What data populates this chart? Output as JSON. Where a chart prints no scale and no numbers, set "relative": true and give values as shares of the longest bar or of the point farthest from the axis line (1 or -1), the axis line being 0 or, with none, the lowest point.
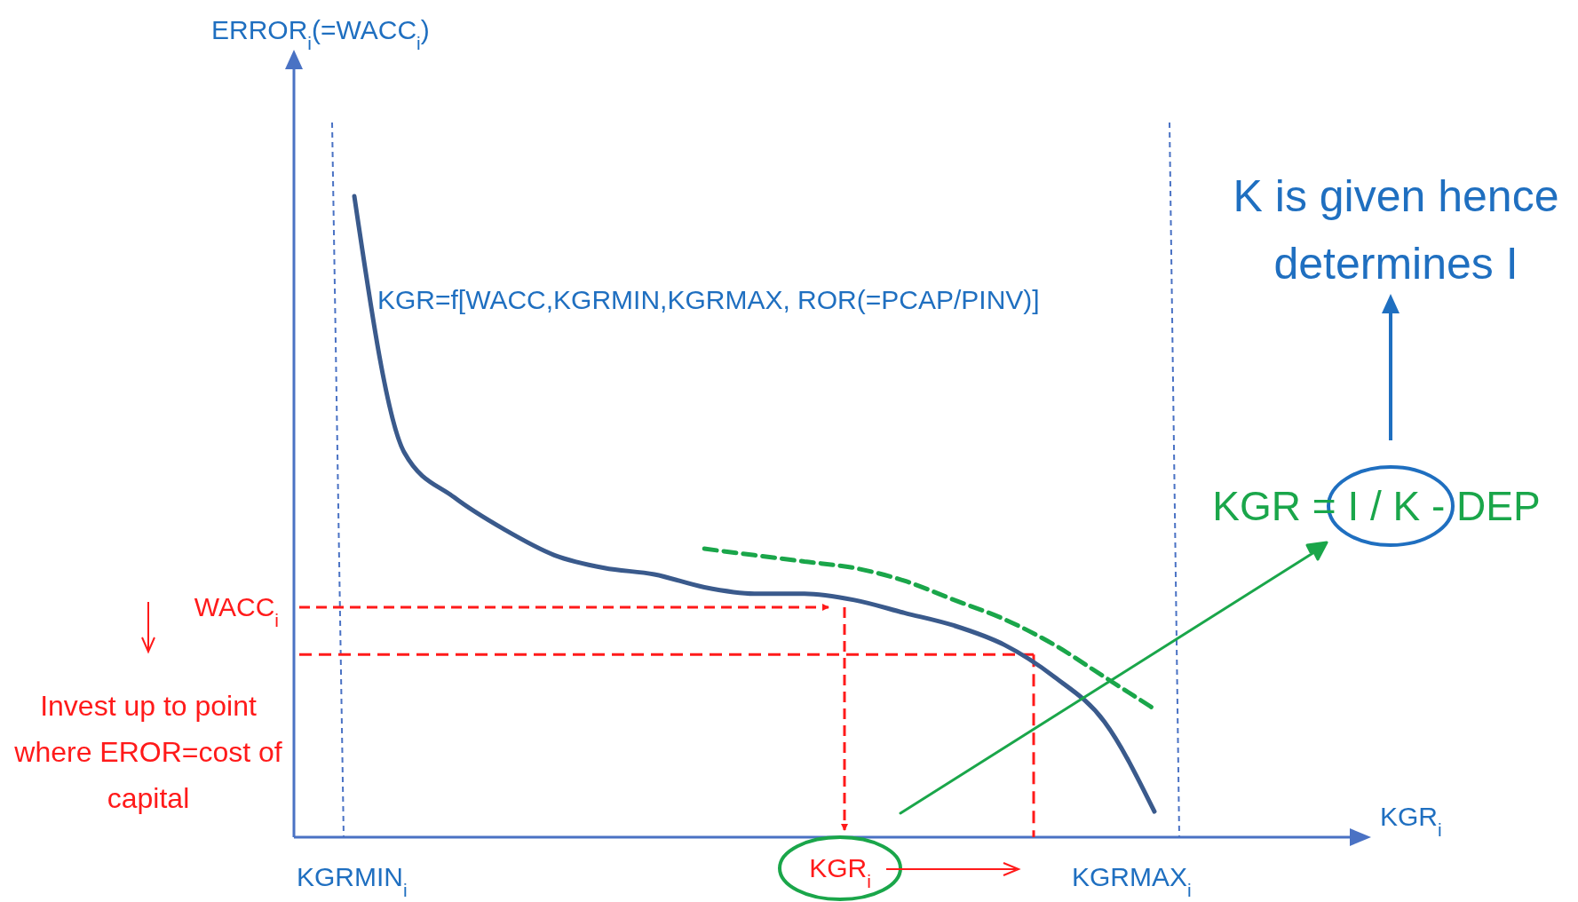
{
  "chart_data": {
    "type": "line",
    "relative": true,
    "categories": [
      null,
      null,
      null,
      null,
      null,
      null,
      null,
      null,
      null,
      null,
      null,
      null,
      null,
      null,
      null,
      null,
      null
    ],
    "series": [
      {
        "color": "#3a5a8c",
        "line_style": "solid",
        "values": [
          1,
          0.6,
          0.53,
          0.48,
          0.44,
          0.42,
          0.41,
          0.39,
          0.38,
          0.38,
          0.37,
          0.35,
          0.33,
          0.3,
          0.25,
          0.18,
          0.04
        ]
      },
      {
        "color": "#1aa64a",
        "line_style": "dashed",
        "values": [
          null,
          null,
          null,
          null,
          null,
          null,
          null,
          0.45,
          0.44,
          0.43,
          0.42,
          0.4,
          0.37,
          0.34,
          0.3,
          0.25,
          0.2
        ]
      }
    ],
    "annotations": [
      "KGR=f[WACC,KGRMIN,KGRMAX, ROR(=PCAP/PINV)]",
      "K is given hence determines I",
      "KGR = I / K - DEP",
      "WACC$_{i}$",
      "Invest up to point where EROR=cost of capital",
      "KGRMIN$_{i}$",
      "KGRMAX$_{i}$",
      "KGR$_{i}$",
      "ERROR$_{i}$(=WACC$_{i}$)",
      "KGR$_{i}$"
    ],
    "ref_lines": [
      {
        "axis": "y",
        "value": 0.285,
        "color": "#ff1a1a",
        "line_style": "dashed"
      }
    ],
    "legend": false,
    "grid": false,
    "marker": "none"
  }
}
